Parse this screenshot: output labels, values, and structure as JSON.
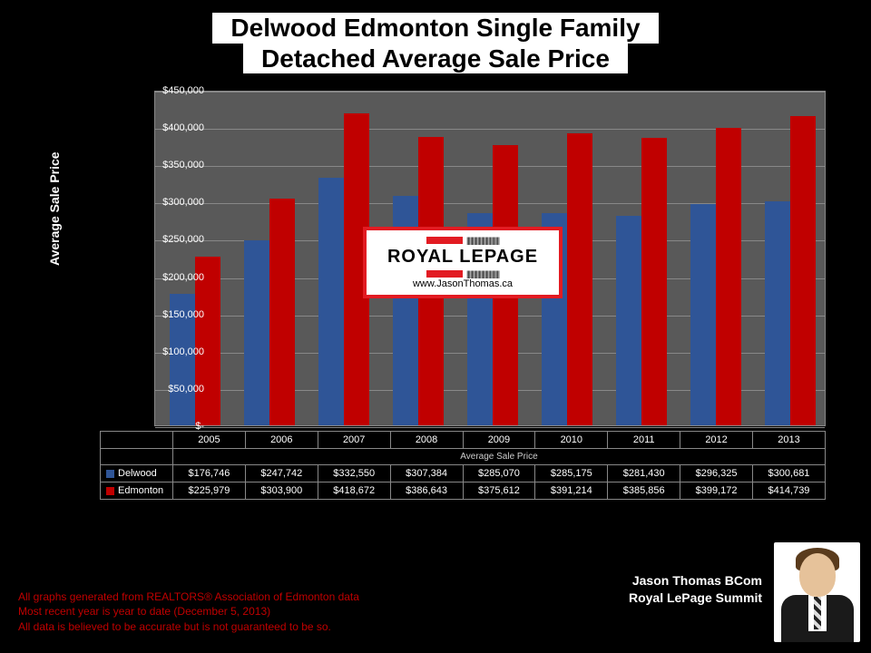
{
  "title_line1": "Delwood Edmonton Single Family",
  "title_line2": "Detached Average Sale Price",
  "chart": {
    "type": "bar",
    "background_color": "#595959",
    "grid_color": "#888888",
    "ylabel": "Average Sale Price",
    "xaxis_label": "Average Sale Price",
    "ylim_max": 450000,
    "ytick_step": 50000,
    "yticks": [
      "$-",
      "$50,000",
      "$100,000",
      "$150,000",
      "$200,000",
      "$250,000",
      "$300,000",
      "$350,000",
      "$400,000",
      "$450,000"
    ],
    "categories": [
      "2005",
      "2006",
      "2007",
      "2008",
      "2009",
      "2010",
      "2011",
      "2012",
      "2013"
    ],
    "series": [
      {
        "name": "Delwood",
        "color": "#2f5597",
        "values": [
          176746,
          247742,
          332550,
          307384,
          285070,
          285175,
          281430,
          296325,
          300681
        ],
        "display": [
          "$176,746",
          "$247,742",
          "$332,550",
          "$307,384",
          "$285,070",
          "$285,175",
          "$281,430",
          "$296,325",
          "$300,681"
        ]
      },
      {
        "name": "Edmonton",
        "color": "#c00000",
        "values": [
          225979,
          303900,
          418672,
          386643,
          375612,
          391214,
          385856,
          399172,
          414739
        ],
        "display": [
          "$225,979",
          "$303,900",
          "$418,672",
          "$386,643",
          "$375,612",
          "$391,214",
          "$385,856",
          "$399,172",
          "$414,739"
        ]
      }
    ]
  },
  "watermark": {
    "brand": "ROYAL LEPAGE",
    "url": "www.JasonThomas.ca",
    "bar_color": "#e21b22"
  },
  "footer": {
    "line1": "All graphs generated from REALTORS® Association of Edmonton data",
    "line2": "Most recent year is year to date (December 5, 2013)",
    "line3": "All data is believed to be accurate but is not guaranteed to be so.",
    "author_line1": "Jason Thomas BCom",
    "author_line2": "Royal LePage Summit"
  }
}
